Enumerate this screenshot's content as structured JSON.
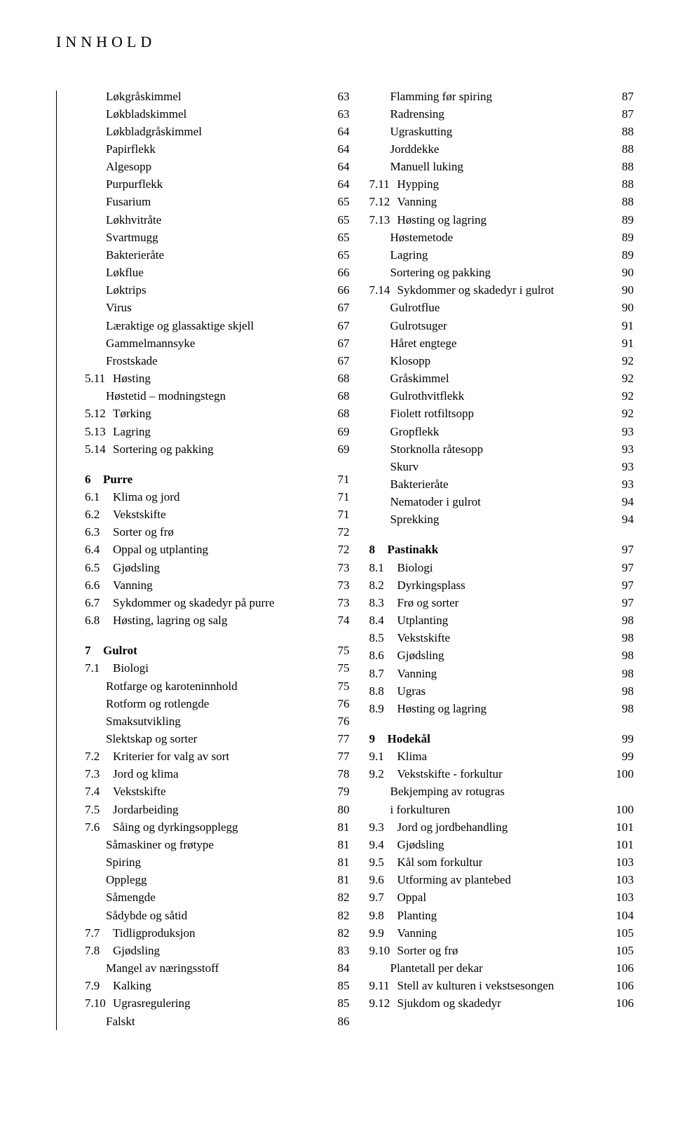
{
  "title": "INNHOLD",
  "columns": [
    {
      "blocks": [
        {
          "entries": [
            {
              "type": "sub",
              "label": "Løkgråskimmel",
              "page": "63"
            },
            {
              "type": "sub",
              "label": "Løkbladskimmel",
              "page": "63"
            },
            {
              "type": "sub",
              "label": "Løkbladgråskimmel",
              "page": "64"
            },
            {
              "type": "sub",
              "label": "Papirflekk",
              "page": "64"
            },
            {
              "type": "sub",
              "label": "Algesopp",
              "page": "64"
            },
            {
              "type": "sub",
              "label": "Purpurflekk",
              "page": "64"
            },
            {
              "type": "sub",
              "label": "Fusarium",
              "page": "65"
            },
            {
              "type": "sub",
              "label": "Løkhvitråte",
              "page": "65"
            },
            {
              "type": "sub",
              "label": "Svartmugg",
              "page": "65"
            },
            {
              "type": "sub",
              "label": "Bakterieråte",
              "page": "65"
            },
            {
              "type": "sub",
              "label": "Løkflue",
              "page": "66"
            },
            {
              "type": "sub",
              "label": "Løktrips",
              "page": "66"
            },
            {
              "type": "sub",
              "label": "Virus",
              "page": "67"
            },
            {
              "type": "sub",
              "label": "Læraktige og glassaktige skjell",
              "page": "67"
            },
            {
              "type": "sub",
              "label": "Gammelmannsyke",
              "page": "67"
            },
            {
              "type": "sub",
              "label": "Frostskade",
              "page": "67"
            },
            {
              "type": "item",
              "num": "5.11",
              "label": "Høsting",
              "page": "68"
            },
            {
              "type": "sub",
              "label": "Høstetid – modningstegn",
              "page": "68"
            },
            {
              "type": "item",
              "num": "5.12",
              "label": "Tørking",
              "page": "68"
            },
            {
              "type": "item",
              "num": "5.13",
              "label": "Lagring",
              "page": "69"
            },
            {
              "type": "item",
              "num": "5.14",
              "label": "Sortering og pakking",
              "page": "69"
            }
          ]
        },
        {
          "entries": [
            {
              "type": "heading",
              "ch": "6",
              "label": "Purre",
              "page": "71"
            },
            {
              "type": "item",
              "num": "6.1",
              "label": "Klima og jord",
              "page": "71"
            },
            {
              "type": "item",
              "num": "6.2",
              "label": "Vekstskifte",
              "page": "71"
            },
            {
              "type": "item",
              "num": "6.3",
              "label": "Sorter og frø",
              "page": "72"
            },
            {
              "type": "item",
              "num": "6.4",
              "label": "Oppal og utplanting",
              "page": "72"
            },
            {
              "type": "item",
              "num": "6.5",
              "label": "Gjødsling",
              "page": "73"
            },
            {
              "type": "item",
              "num": "6.6",
              "label": "Vanning",
              "page": "73"
            },
            {
              "type": "item",
              "num": "6.7",
              "label": "Sykdommer og skadedyr på purre",
              "page": "73"
            },
            {
              "type": "item",
              "num": "6.8",
              "label": "Høsting, lagring og salg",
              "page": "74"
            }
          ]
        },
        {
          "entries": [
            {
              "type": "heading",
              "ch": "7",
              "label": "Gulrot",
              "page": "75"
            },
            {
              "type": "item",
              "num": "7.1",
              "label": "Biologi",
              "page": "75"
            },
            {
              "type": "sub",
              "label": "Rotfarge og karoteninnhold",
              "page": "75"
            },
            {
              "type": "sub",
              "label": "Rotform og rotlengde",
              "page": "76"
            },
            {
              "type": "sub",
              "label": "Smaksutvikling",
              "page": "76"
            },
            {
              "type": "sub",
              "label": "Slektskap og sorter",
              "page": "77"
            },
            {
              "type": "item",
              "num": "7.2",
              "label": "Kriterier for valg av sort",
              "page": "77"
            },
            {
              "type": "item",
              "num": "7.3",
              "label": "Jord og klima",
              "page": "78"
            },
            {
              "type": "item",
              "num": "7.4",
              "label": "Vekstskifte",
              "page": "79"
            },
            {
              "type": "item",
              "num": "7.5",
              "label": "Jordarbeiding",
              "page": "80"
            },
            {
              "type": "item",
              "num": "7.6",
              "label": "Såing og dyrkingsopplegg",
              "page": "81"
            },
            {
              "type": "sub",
              "label": "Såmaskiner og frøtype",
              "page": "81"
            },
            {
              "type": "sub",
              "label": "Spiring",
              "page": "81"
            },
            {
              "type": "sub",
              "label": "Opplegg",
              "page": "81"
            },
            {
              "type": "sub",
              "label": "Såmengde",
              "page": "82"
            },
            {
              "type": "sub",
              "label": "Sådybde og såtid",
              "page": "82"
            },
            {
              "type": "item",
              "num": "7.7",
              "label": "Tidligproduksjon",
              "page": "82"
            },
            {
              "type": "item",
              "num": "7.8",
              "label": "Gjødsling",
              "page": "83"
            },
            {
              "type": "sub",
              "label": "Mangel av næringsstoff",
              "page": "84"
            },
            {
              "type": "item",
              "num": "7.9",
              "label": "Kalking",
              "page": "85"
            },
            {
              "type": "item",
              "num": "7.10",
              "label": "Ugrasregulering",
              "page": "85"
            },
            {
              "type": "sub",
              "label": "Falskt",
              "page": "86"
            }
          ]
        }
      ]
    },
    {
      "blocks": [
        {
          "entries": [
            {
              "type": "sub",
              "label": "Flamming før spiring",
              "page": "87"
            },
            {
              "type": "sub",
              "label": "Radrensing",
              "page": "87"
            },
            {
              "type": "sub",
              "label": "Ugraskutting",
              "page": "88"
            },
            {
              "type": "sub",
              "label": "Jorddekke",
              "page": "88"
            },
            {
              "type": "sub",
              "label": "Manuell luking",
              "page": "88"
            },
            {
              "type": "item",
              "num": "7.11",
              "label": "Hypping",
              "page": "88"
            },
            {
              "type": "item",
              "num": "7.12",
              "label": "Vanning",
              "page": "88"
            },
            {
              "type": "item",
              "num": "7.13",
              "label": "Høsting og lagring",
              "page": "89"
            },
            {
              "type": "sub",
              "label": "Høstemetode",
              "page": "89"
            },
            {
              "type": "sub",
              "label": "Lagring",
              "page": "89"
            },
            {
              "type": "sub",
              "label": "Sortering og pakking",
              "page": "90"
            },
            {
              "type": "item",
              "num": "7.14",
              "label": "Sykdommer og skadedyr i gulrot",
              "page": "90"
            },
            {
              "type": "sub",
              "label": "Gulrotflue",
              "page": "90"
            },
            {
              "type": "sub",
              "label": "Gulrotsuger",
              "page": "91"
            },
            {
              "type": "sub",
              "label": "Håret engtege",
              "page": "91"
            },
            {
              "type": "sub",
              "label": "Klosopp",
              "page": "92"
            },
            {
              "type": "sub",
              "label": "Gråskimmel",
              "page": "92"
            },
            {
              "type": "sub",
              "label": "Gulrothvitflekk",
              "page": "92"
            },
            {
              "type": "sub",
              "label": "Fiolett rotfiltsopp",
              "page": "92"
            },
            {
              "type": "sub",
              "label": "Gropflekk",
              "page": "93"
            },
            {
              "type": "sub",
              "label": "Storknolla råtesopp",
              "page": "93"
            },
            {
              "type": "sub",
              "label": "Skurv",
              "page": "93"
            },
            {
              "type": "sub",
              "label": "Bakterieråte",
              "page": "93"
            },
            {
              "type": "sub",
              "label": "Nematoder i gulrot",
              "page": "94"
            },
            {
              "type": "sub",
              "label": "Sprekking",
              "page": "94"
            }
          ]
        },
        {
          "entries": [
            {
              "type": "heading",
              "ch": "8",
              "label": "Pastinakk",
              "page": "97"
            },
            {
              "type": "item",
              "num": "8.1",
              "label": "Biologi",
              "page": "97"
            },
            {
              "type": "item",
              "num": "8.2",
              "label": "Dyrkingsplass",
              "page": "97"
            },
            {
              "type": "item",
              "num": "8.3",
              "label": "Frø og sorter",
              "page": "97"
            },
            {
              "type": "item",
              "num": "8.4",
              "label": "Utplanting",
              "page": "98"
            },
            {
              "type": "item",
              "num": "8.5",
              "label": "Vekstskifte",
              "page": "98"
            },
            {
              "type": "item",
              "num": "8.6",
              "label": "Gjødsling",
              "page": "98"
            },
            {
              "type": "item",
              "num": "8.7",
              "label": "Vanning",
              "page": "98"
            },
            {
              "type": "item",
              "num": "8.8",
              "label": "Ugras",
              "page": "98"
            },
            {
              "type": "item",
              "num": "8.9",
              "label": "Høsting og lagring",
              "page": "98"
            }
          ]
        },
        {
          "entries": [
            {
              "type": "heading",
              "ch": "9",
              "label": "Hodekål",
              "page": "99"
            },
            {
              "type": "item",
              "num": "9.1",
              "label": "Klima",
              "page": "99"
            },
            {
              "type": "item",
              "num": "9.2",
              "label": "Vekstskifte - forkultur",
              "page": "100"
            },
            {
              "type": "sub",
              "label": "Bekjemping av rotugras",
              "page": ""
            },
            {
              "type": "sub",
              "label": "i forkulturen",
              "page": "100"
            },
            {
              "type": "item",
              "num": "9.3",
              "label": "Jord og jordbehandling",
              "page": "101"
            },
            {
              "type": "item",
              "num": "9.4",
              "label": "Gjødsling",
              "page": "101"
            },
            {
              "type": "item",
              "num": "9.5",
              "label": "Kål som forkultur",
              "page": "103"
            },
            {
              "type": "item",
              "num": "9.6",
              "label": "Utforming av plantebed",
              "page": "103"
            },
            {
              "type": "item",
              "num": "9.7",
              "label": "Oppal",
              "page": "103"
            },
            {
              "type": "item",
              "num": "9.8",
              "label": "Planting",
              "page": "104"
            },
            {
              "type": "item",
              "num": "9.9",
              "label": "Vanning",
              "page": "105"
            },
            {
              "type": "item",
              "num": "9.10",
              "label": "Sorter og frø",
              "page": "105"
            },
            {
              "type": "sub",
              "label": "Plantetall per dekar",
              "page": "106"
            },
            {
              "type": "item",
              "num": "9.11",
              "label": "Stell av kulturen i vekstsesongen",
              "page": "106"
            },
            {
              "type": "item",
              "num": "9.12",
              "label": "Sjukdom og skadedyr",
              "page": "106"
            }
          ]
        }
      ]
    }
  ]
}
